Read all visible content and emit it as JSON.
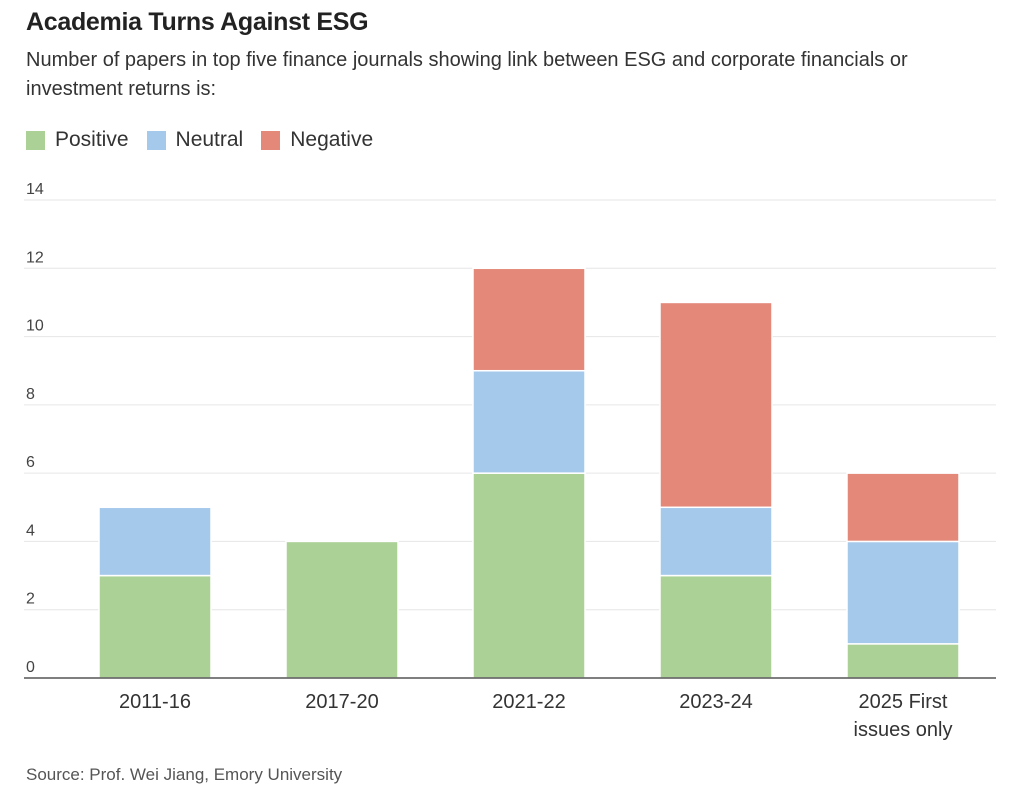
{
  "title": "Academia Turns Against ESG",
  "subtitle": "Number of papers in top five finance journals showing link between ESG and corporate financials or investment returns is:",
  "source": "Source: Prof. Wei Jiang, Emory University",
  "colors": {
    "Positive": "#acd196",
    "Neutral": "#a5c9eb",
    "Negative": "#e4897a"
  },
  "chart_data": {
    "type": "bar",
    "stacked": true,
    "categories": [
      "2011-16",
      "2017-20",
      "2021-22",
      "2023-24",
      "2025 First issues only"
    ],
    "category_lines": [
      [
        "2011-16"
      ],
      [
        "2017-20"
      ],
      [
        "2021-22"
      ],
      [
        "2023-24"
      ],
      [
        "2025 First",
        "issues only"
      ]
    ],
    "series": [
      {
        "name": "Positive",
        "values": [
          3,
          4,
          6,
          3,
          1
        ]
      },
      {
        "name": "Neutral",
        "values": [
          2,
          0,
          3,
          2,
          3
        ]
      },
      {
        "name": "Negative",
        "values": [
          0,
          0,
          3,
          6,
          2
        ]
      }
    ],
    "ylim": [
      0,
      14
    ],
    "yticks": [
      0,
      2,
      4,
      6,
      8,
      10,
      12,
      14
    ],
    "grid": true,
    "legend_position": "top-left"
  }
}
